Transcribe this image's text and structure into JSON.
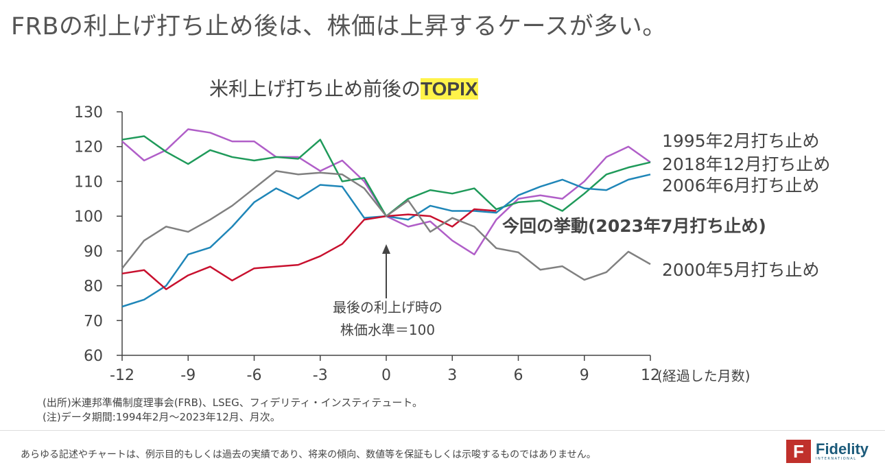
{
  "headline": "FRBの利上げ打ち止め後は、株価は上昇するケースが多い。",
  "chart_data": {
    "type": "line",
    "title_prefix": "米利上げ打ち止め前後の",
    "title_highlight": "TOPIX",
    "xlabel": "(経過した月数)",
    "ylabel": "",
    "xlim": [
      -12,
      12
    ],
    "ylim": [
      60,
      130
    ],
    "xticks": [
      -12,
      -9,
      -6,
      -3,
      0,
      3,
      6,
      9,
      12
    ],
    "yticks": [
      60,
      70,
      80,
      90,
      100,
      110,
      120,
      130
    ],
    "grid": false,
    "x": [
      -12,
      -11,
      -10,
      -9,
      -8,
      -7,
      -6,
      -5,
      -4,
      -3,
      -2,
      -1,
      0,
      1,
      2,
      3,
      4,
      5,
      6,
      7,
      8,
      9,
      10,
      11,
      12
    ],
    "series": [
      {
        "name": "1995年2月打ち止め",
        "color": "#b05ec8",
        "values": [
          121.5,
          116,
          119,
          125,
          124,
          121.5,
          121.5,
          117,
          117,
          113,
          116,
          110,
          100,
          97,
          98.5,
          93,
          89,
          99,
          105,
          106,
          105,
          110,
          117,
          120,
          115.5
        ]
      },
      {
        "name": "2018年12月打ち止め",
        "color": "#1f9a5a",
        "values": [
          122,
          123,
          118.5,
          115,
          119,
          117,
          116,
          117,
          116.5,
          122,
          110,
          111,
          100,
          105,
          107.5,
          106.5,
          108,
          102,
          104,
          104.5,
          101.5,
          106.5,
          112,
          114,
          115.5
        ]
      },
      {
        "name": "2006年6月打ち止め",
        "color": "#1f86b8",
        "values": [
          74,
          76,
          80,
          89,
          91,
          97,
          104,
          108,
          105,
          109,
          108.5,
          99.5,
          100,
          99,
          103,
          101.5,
          101.5,
          101,
          106,
          108.5,
          110.5,
          108,
          107.5,
          110.5,
          112
        ]
      },
      {
        "name": "今回の挙動(2023年7月打ち止め)",
        "color": "#c8102e",
        "values": [
          83.5,
          84.5,
          79,
          83,
          85.5,
          81.5,
          85,
          85.5,
          86,
          88.5,
          92,
          99,
          100,
          100.5,
          100,
          97,
          102,
          101.5,
          null,
          null,
          null,
          null,
          null,
          null,
          null
        ]
      },
      {
        "name": "2000年5月打ち止め",
        "color": "#808080",
        "values": [
          85,
          93,
          97,
          95.5,
          99,
          103,
          108,
          113,
          112,
          112.5,
          112,
          108,
          100,
          104.5,
          95.5,
          99.5,
          97,
          90.8,
          89.6,
          84.6,
          85.6,
          81.7,
          83.9,
          89.8,
          86.2
        ]
      }
    ],
    "annotation": {
      "line1": "最後の利上げ時の",
      "line2": "株価水準＝100"
    }
  },
  "source": "(出所)米連邦準備制度理事会(FRB)、LSEG、フィデリティ・インスティテュート。",
  "note": "(注)データ期間:1994年2月～2023年12月、月次。",
  "disclaimer": "あらゆる記述やチャートは、例示目的もしくは過去の実績であり、将来の傾向、数値等を保証もしくは示唆するものではありません。",
  "logo": {
    "mark": "F",
    "name": "Fidelity",
    "sub": "INTERNATIONAL"
  }
}
